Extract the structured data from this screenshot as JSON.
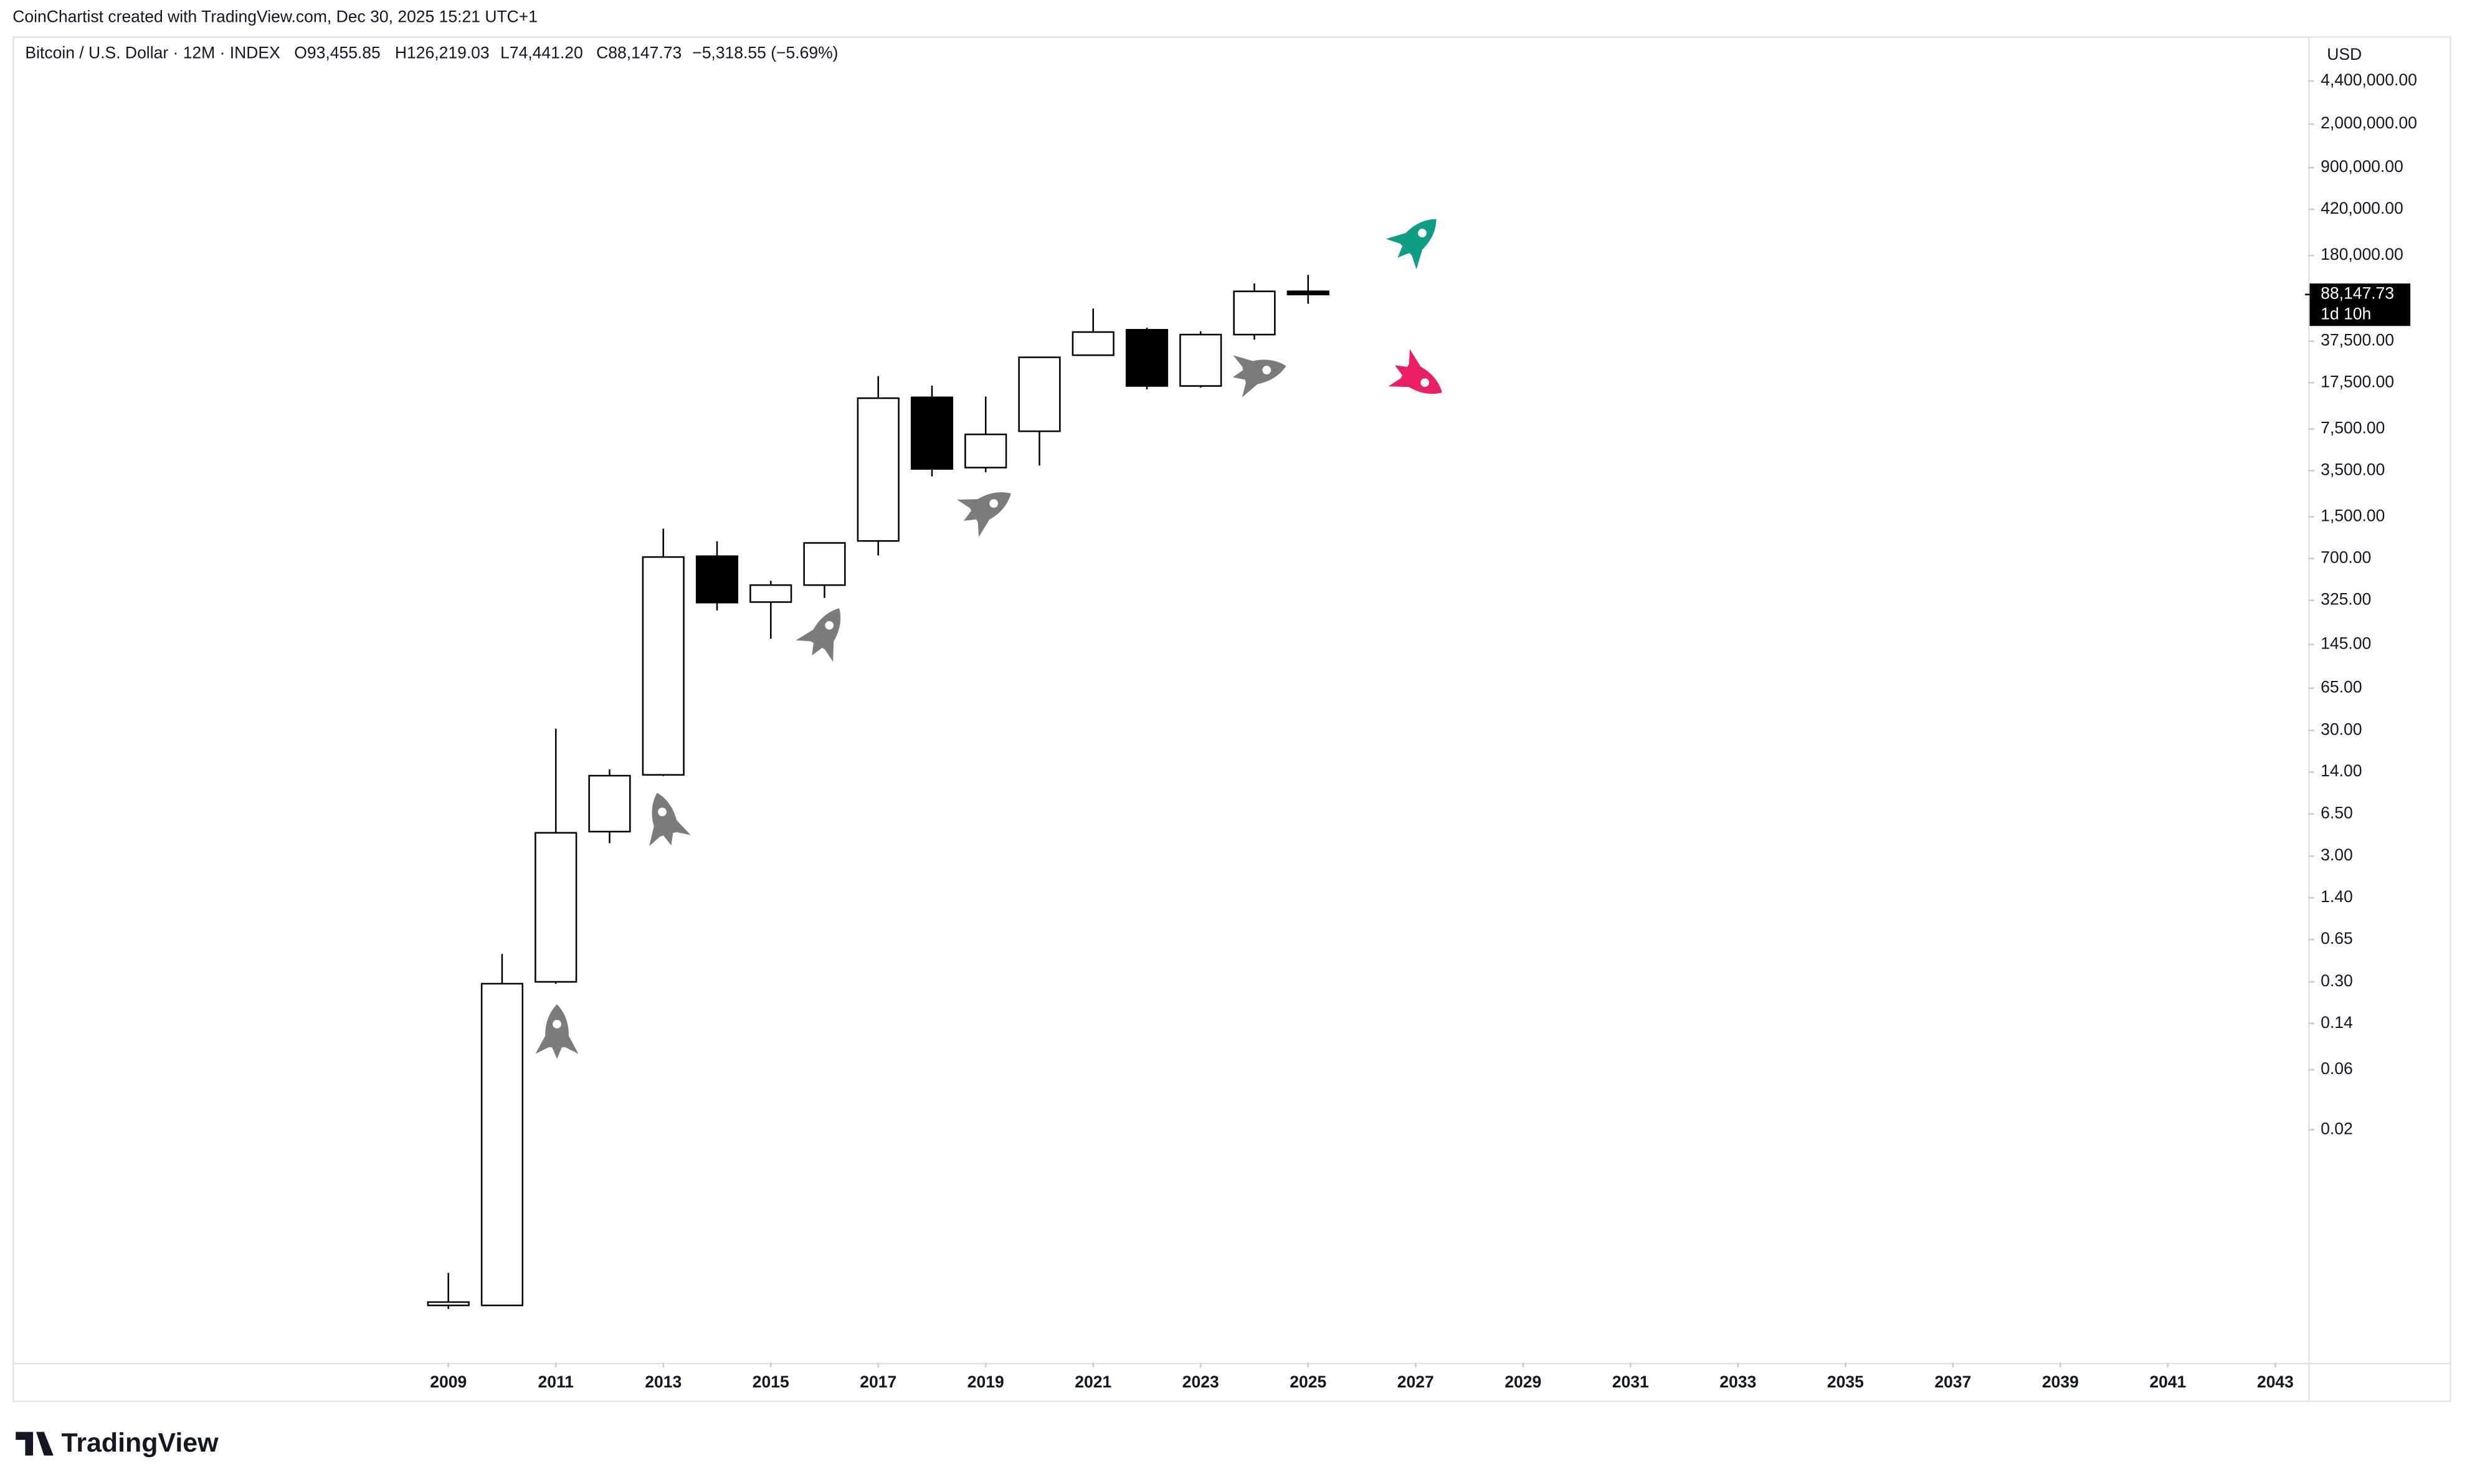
{
  "credit": "CoinChartist created with TradingView.com, Dec 30, 2025 15:21 UTC+1",
  "brand": "TradingView",
  "chart_data": {
    "type": "candlestick",
    "header": {
      "symbol": "Bitcoin / U.S. Dollar · 12M · INDEX",
      "ohlc_labels": [
        "O93,455.85",
        "H126,219.03",
        "L74,441.20",
        "C88,147.73"
      ],
      "change": "−5,318.55 (−5.69%)"
    },
    "currency": "USD",
    "x": [
      2009,
      2010,
      2011,
      2012,
      2013,
      2014,
      2015,
      2016,
      2017,
      2018,
      2019,
      2020,
      2021,
      2022,
      2023,
      2024,
      2025
    ],
    "open": [
      0.0008,
      0.0008,
      0.3,
      4.7,
      13.3,
      730,
      315,
      430,
      965,
      13400,
      3700,
      7200,
      29000,
      46200,
      16500,
      42300,
      93455.85
    ],
    "high": [
      0.00145,
      0.5,
      31,
      14.7,
      1208,
      960,
      465,
      931,
      19800,
      16600,
      13600,
      27900,
      68200,
      48000,
      45000,
      108000,
      126219.03
    ],
    "low": [
      0.00075,
      0.0008,
      0.29,
      3.8,
      13,
      270,
      161,
      340,
      740,
      3150,
      3400,
      3850,
      28800,
      15500,
      16000,
      38500,
      74441.2
    ],
    "close": [
      0.00085,
      0.29,
      4.6,
      13.1,
      719,
      312,
      430,
      931,
      13200,
      3610,
      6800,
      27900,
      44300,
      16500,
      42300,
      93400,
      88147.73
    ],
    "up_color": "#ffffff",
    "down_color": "#000000",
    "border_color": "#000000",
    "log_scale": true,
    "xlim": [
      2000.89,
      2043.61
    ],
    "xticks": [
      2009,
      2011,
      2013,
      2015,
      2017,
      2019,
      2021,
      2023,
      2025,
      2027,
      2029,
      2031,
      2033,
      2035,
      2037,
      2039,
      2041,
      2043
    ],
    "ylim": [
      0.00028,
      9980000
    ],
    "yticks": [
      {
        "value": 0.02,
        "label": "0.02"
      },
      {
        "value": 0.06,
        "label": "0.06"
      },
      {
        "value": 0.14,
        "label": "0.14"
      },
      {
        "value": 0.3,
        "label": "0.30"
      },
      {
        "value": 0.65,
        "label": "0.65"
      },
      {
        "value": 1.4,
        "label": "1.40"
      },
      {
        "value": 3,
        "label": "3.00"
      },
      {
        "value": 6.5,
        "label": "6.50"
      },
      {
        "value": 14,
        "label": "14.00"
      },
      {
        "value": 30,
        "label": "30.00"
      },
      {
        "value": 65,
        "label": "65.00"
      },
      {
        "value": 145,
        "label": "145.00"
      },
      {
        "value": 325,
        "label": "325.00"
      },
      {
        "value": 700,
        "label": "700.00"
      },
      {
        "value": 1500,
        "label": "1,500.00"
      },
      {
        "value": 3500,
        "label": "3,500.00"
      },
      {
        "value": 7500,
        "label": "7,500.00"
      },
      {
        "value": 17500,
        "label": "17,500.00"
      },
      {
        "value": 37500,
        "label": "37,500.00"
      },
      {
        "value": 180000,
        "label": "180,000.00"
      },
      {
        "value": 420000,
        "label": "420,000.00"
      },
      {
        "value": 900000,
        "label": "900,000.00"
      },
      {
        "value": 2000000,
        "label": "2,000,000.00"
      },
      {
        "value": 4400000,
        "label": "4,400,000.00"
      }
    ],
    "last_price": {
      "value": 88147.73,
      "label": "88,147.73"
    },
    "countdown": "1d 10h",
    "grid": false
  }
}
